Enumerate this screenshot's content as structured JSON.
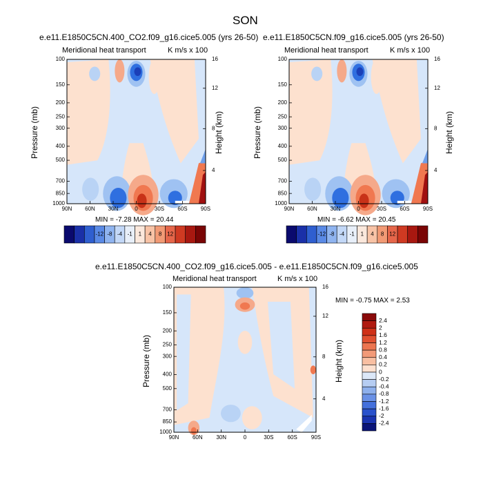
{
  "page_title": "SON",
  "colors": {
    "deep_blue": "#0a0a9a",
    "mid_blue": "#2f6fe0",
    "light_blue": "#d6e6fa",
    "light_orange": "#fde1cf",
    "mid_orange": "#f07850",
    "deep_red": "#a01010"
  },
  "chart_data": [
    {
      "type": "heatmap",
      "title": "e.e11.E1850C5CN.400_CO2.f09_g16.cice5.005 (yrs 26-50)",
      "subtitle_left": "Meridional heat transport",
      "subtitle_right": "K m/s x 100",
      "ylabel": "Pressure (mb)",
      "ylabel_right": "Height (km)",
      "x_ticks": [
        "90N",
        "60N",
        "30N",
        "0",
        "30S",
        "60S",
        "90S"
      ],
      "y_ticks": [
        "100",
        "150",
        "200",
        "250",
        "300",
        "400",
        "500",
        "700",
        "850",
        "1000"
      ],
      "y_right_ticks": [
        "16",
        "12",
        "8",
        "4"
      ],
      "min_max": "MIN = -7.28   MAX = 20.44",
      "colorbar_labels": [
        "-12",
        "-8",
        "-4",
        "-1",
        "1",
        "4",
        "8",
        "12"
      ]
    },
    {
      "type": "heatmap",
      "title": "e.e11.E1850C5CN.f09_g16.cice5.005 (yrs 26-50)",
      "subtitle_left": "Meridional heat transport",
      "subtitle_right": "K m/s x 100",
      "ylabel": "Pressure (mb)",
      "ylabel_right": "Height (km)",
      "x_ticks": [
        "90N",
        "60N",
        "30N",
        "0",
        "30S",
        "60S",
        "90S"
      ],
      "y_ticks": [
        "100",
        "150",
        "200",
        "250",
        "300",
        "400",
        "500",
        "700",
        "850",
        "1000"
      ],
      "y_right_ticks": [
        "16",
        "12",
        "8",
        "4"
      ],
      "min_max": "MIN = -6.62   MAX = 20.45",
      "colorbar_labels": [
        "-12",
        "-8",
        "-4",
        "-1",
        "1",
        "4",
        "8",
        "12"
      ]
    },
    {
      "type": "heatmap",
      "title": "e.e11.E1850C5CN.400_CO2.f09_g16.cice5.005 - e.e11.E1850C5CN.f09_g16.cice5.005",
      "subtitle_left": "Meridional heat transport",
      "subtitle_right": "K m/s x 100",
      "ylabel": "Pressure (mb)",
      "ylabel_right": "Height (km)",
      "x_ticks": [
        "90N",
        "60N",
        "30N",
        "0",
        "30S",
        "60S",
        "90S"
      ],
      "y_ticks": [
        "100",
        "150",
        "200",
        "250",
        "300",
        "400",
        "500",
        "700",
        "850",
        "1000"
      ],
      "y_right_ticks": [
        "16",
        "12",
        "8",
        "4"
      ],
      "min_max": "MIN =  -0.75   MAX =   2.53",
      "colorbar_labels": [
        "2.4",
        "2",
        "1.6",
        "1.2",
        "0.8",
        "0.4",
        "0.2",
        "0",
        "-0.2",
        "-0.4",
        "-0.8",
        "-1.2",
        "-1.6",
        "-2",
        "-2.4"
      ]
    }
  ]
}
